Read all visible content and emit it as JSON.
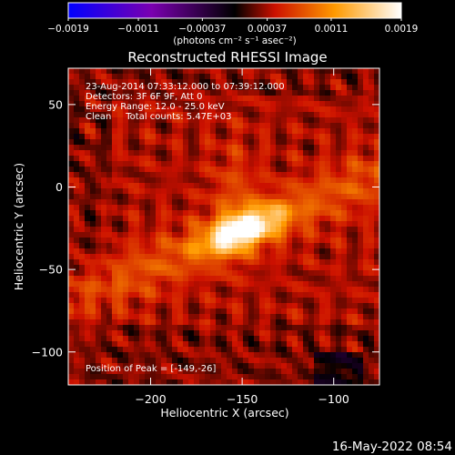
{
  "chart_data": {
    "type": "heatmap",
    "title": "Reconstructed RHESSI Image",
    "xlabel": "Heliocentric X (arcsec)",
    "ylabel": "Heliocentric Y (arcsec)",
    "xlim": [
      -245,
      -75
    ],
    "ylim": [
      -120,
      72
    ],
    "x_ticks": [
      -200,
      -150,
      -100
    ],
    "x_tick_labels": [
      "−200",
      "−150",
      "−100"
    ],
    "y_ticks": [
      -100,
      -50,
      0,
      50
    ],
    "y_tick_labels": [
      "−100",
      "−50",
      "0",
      "50"
    ],
    "colorbar": {
      "min": -0.0019,
      "max": 0.0019,
      "ticks": [
        -0.0019,
        -0.0011,
        -0.00037,
        0.00037,
        0.0011,
        0.0019
      ],
      "tick_labels": [
        "−0.0019",
        "−0.0011",
        "−0.00037",
        "0.00037",
        "0.0011",
        "0.0019"
      ],
      "units_label": "(photons cm⁻² s⁻¹ asec⁻²)",
      "colors": [
        "#0000ff",
        "#7a00b0",
        "#000000",
        "#cc1000",
        "#ff9a00",
        "#ffffff"
      ]
    },
    "annotations": [
      "23-Aug-2014 07:33:12.000 to 07:39:12.000",
      "Detectors: 3F 6F 9F, Att 0",
      "Energy Range: 12.0 - 25.0 keV",
      "Clean     Total counts: 5.47E+03"
    ],
    "peak_label": "Position of Peak = [-149,-26]",
    "peak": {
      "x": -149,
      "y": -26
    }
  },
  "footer": {
    "date": "16-May-2022 08:54"
  }
}
